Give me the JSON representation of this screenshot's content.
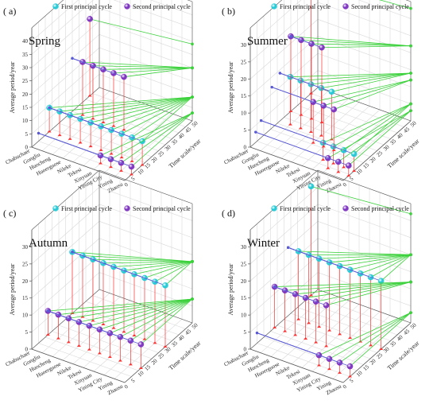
{
  "colors": {
    "first_cycle": "#1fc9d6",
    "second_cycle": "#7b2fbf",
    "connector_blue": "#5b5bd6",
    "connector_green": "#3bd13b",
    "stem_red": "#ff3030",
    "grid": "#d9d9d9",
    "frame": "#555555"
  },
  "chart_data": [
    {
      "type": "3d-stem-scatter",
      "panel_label": "( a)",
      "title": "Spring",
      "legend": [
        "First principal cycle",
        "Second principal cycle"
      ],
      "xlabel": "",
      "ylabel": "Time scale/year",
      "zlabel": "Average period/year",
      "stations": [
        "Chabuchaer",
        "Gongliu",
        "Huocheng",
        "Huoerguose",
        "Nileke",
        "Tekesi",
        "Xinyuan",
        "Yining City",
        "Yining",
        "Zhaosu"
      ],
      "ylim": [
        0,
        50
      ],
      "zlim": [
        0,
        45
      ],
      "yticks": [
        0,
        5,
        10,
        15,
        20,
        25,
        30,
        35,
        40,
        45,
        50
      ],
      "zticks": [
        0,
        5,
        10,
        15,
        20,
        25,
        30,
        35,
        40
      ],
      "series": [
        {
          "name": "First principal cycle",
          "time_scale": [
            13,
            13,
            13,
            13,
            13,
            13,
            13,
            13,
            13,
            13
          ],
          "period": [
            9,
            9,
            9,
            9,
            9,
            9,
            9,
            9,
            9,
            9
          ]
        },
        {
          "name": "Second principal cycle",
          "time_scale": [
            43,
            30,
            30,
            30,
            30,
            30,
            5,
            5,
            5,
            5
          ],
          "period": [
            29,
            20,
            20,
            20,
            20,
            20,
            3,
            3,
            3,
            3
          ]
        }
      ]
    },
    {
      "type": "3d-stem-scatter",
      "panel_label": "( b)",
      "title": "Summer",
      "legend": [
        "First principal cycle",
        "Second principal cycle"
      ],
      "xlabel": "",
      "ylabel": "Time scale/year",
      "zlabel": "Average period/year",
      "stations": [
        "Chabuchaer",
        "Gongliu",
        "Huocheng",
        "Huoerguose",
        "Nileke",
        "Tekesi",
        "Xinyuan",
        "Yining City",
        "Yining",
        "Zhaosu"
      ],
      "ylim": [
        0,
        50
      ],
      "zlim": [
        0,
        35
      ],
      "yticks": [
        0,
        5,
        10,
        15,
        20,
        25,
        30,
        35,
        40,
        45,
        50
      ],
      "zticks": [
        0,
        5,
        10,
        15,
        20,
        25,
        30
      ],
      "series": [
        {
          "name": "First principal cycle",
          "time_scale": [
            45,
            22,
            22,
            22,
            22,
            22,
            8,
            8,
            8,
            8
          ],
          "period": [
            33,
            14,
            14,
            14,
            14,
            14,
            5,
            5,
            5,
            5
          ]
        },
        {
          "name": "Second principal cycle",
          "time_scale": [
            30,
            30,
            30,
            30,
            16,
            16,
            16,
            4,
            4,
            4
          ],
          "period": [
            22,
            22,
            22,
            22,
            12,
            12,
            12,
            3,
            3,
            3
          ]
        }
      ]
    },
    {
      "type": "3d-stem-scatter",
      "panel_label": "( c)",
      "title": "Autumn",
      "legend": [
        "First principal cycle",
        "Second principal cycle"
      ],
      "xlabel": "",
      "ylabel": "Time scale/year",
      "zlabel": "Average period/year",
      "stations": [
        "Chabuchaer",
        "Gongliu",
        "Huocheng",
        "Huoerguose",
        "Nileke",
        "Tekesi",
        "Xinyuan",
        "Yining City",
        "Yining",
        "Zhaosu"
      ],
      "ylim": [
        0,
        50
      ],
      "zlim": [
        0,
        35
      ],
      "yticks": [
        0,
        5,
        10,
        15,
        20,
        25,
        30,
        35,
        40,
        45,
        50
      ],
      "zticks": [
        0,
        5,
        10,
        15,
        20,
        25,
        30
      ],
      "series": [
        {
          "name": "First principal cycle",
          "time_scale": [
            30,
            30,
            30,
            30,
            30,
            30,
            30,
            30,
            30,
            30
          ],
          "period": [
            18,
            18,
            18,
            18,
            18,
            18,
            18,
            18,
            18,
            18
          ]
        },
        {
          "name": "Second principal cycle",
          "time_scale": [
            12,
            12,
            12,
            12,
            12,
            12,
            12,
            12,
            12,
            12
          ],
          "period": [
            7,
            7,
            7,
            7,
            7,
            7,
            7,
            7,
            7,
            7
          ]
        }
      ]
    },
    {
      "type": "3d-stem-scatter",
      "panel_label": "( d)",
      "title": "Winter",
      "legend": [
        "First principal cycle",
        "Second principal cycle"
      ],
      "xlabel": "",
      "ylabel": "Time scale/year",
      "zlabel": "Average period/year",
      "stations": [
        "Chabuchaer",
        "Gongliu",
        "Huocheng",
        "Huoerguose",
        "Nileke",
        "Tekesi",
        "Xinyuan",
        "Yining City",
        "Yining",
        "Zhaosu"
      ],
      "ylim": [
        0,
        50
      ],
      "zlim": [
        0,
        35
      ],
      "yticks": [
        0,
        5,
        10,
        15,
        20,
        25,
        30,
        35,
        40,
        45,
        50
      ],
      "zticks": [
        0,
        5,
        10,
        15,
        20,
        25,
        30
      ],
      "series": [
        {
          "name": "First principal cycle",
          "time_scale": [
            45,
            28,
            28,
            28,
            28,
            28,
            28,
            28,
            28,
            28
          ],
          "period": [
            32,
            20,
            20,
            20,
            20,
            20,
            20,
            20,
            20,
            20
          ]
        },
        {
          "name": "Second principal cycle",
          "time_scale": [
            18,
            18,
            18,
            18,
            18,
            18,
            5,
            5,
            5,
            5
          ],
          "period": [
            12,
            12,
            12,
            12,
            12,
            12,
            3,
            3,
            3,
            3
          ]
        }
      ]
    }
  ]
}
